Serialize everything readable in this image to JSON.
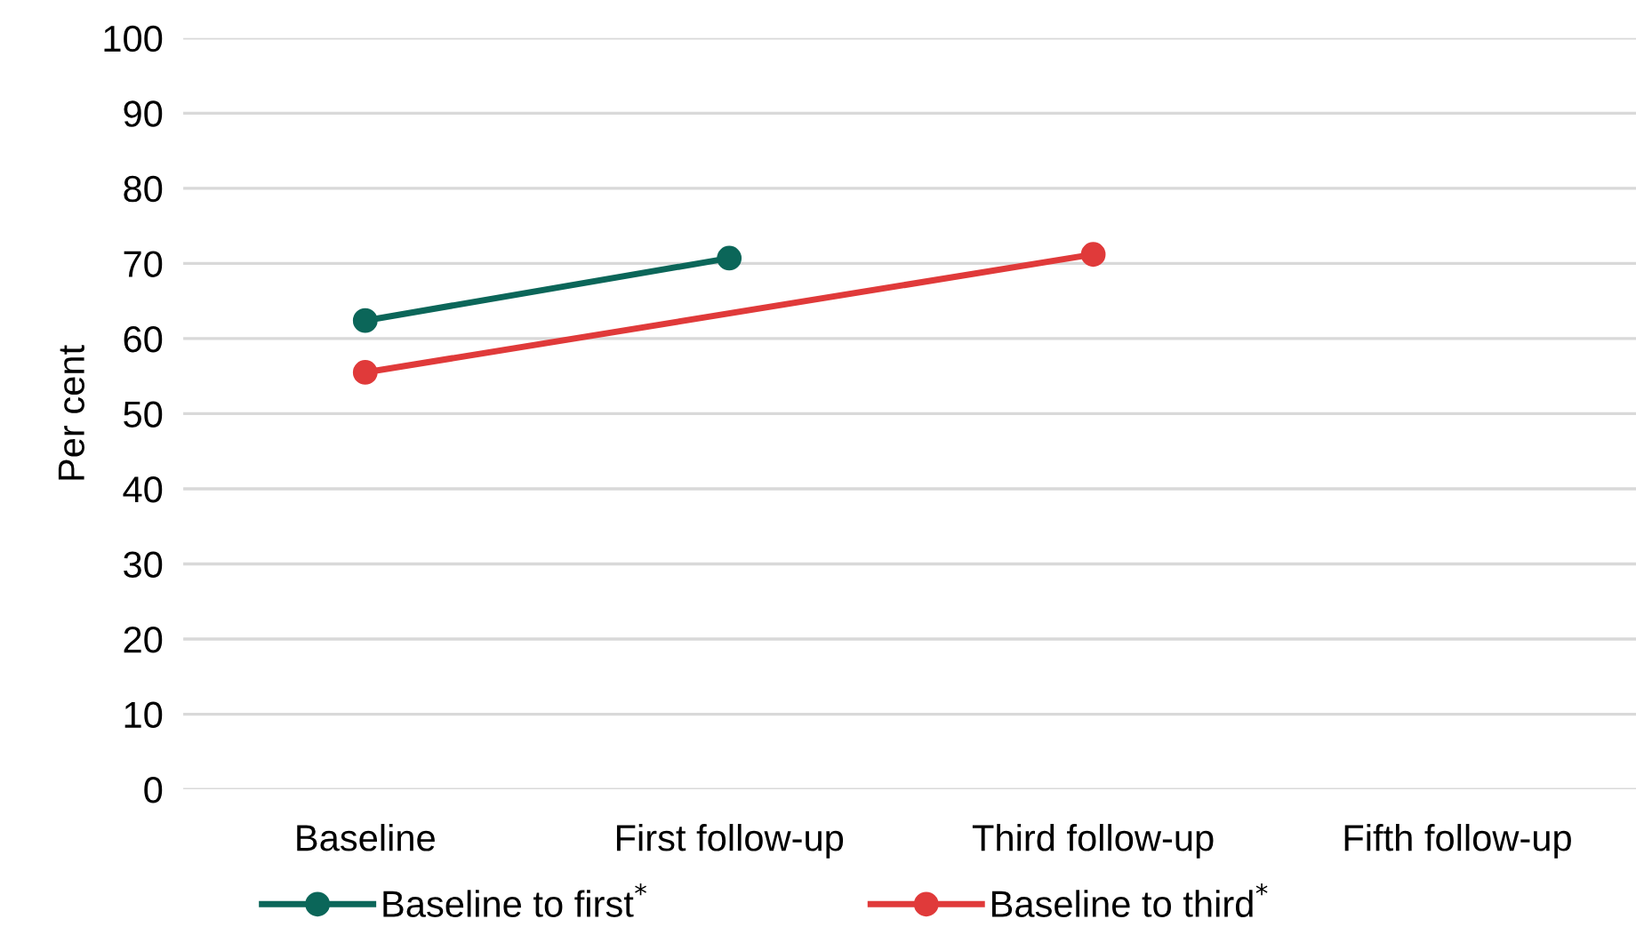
{
  "chart_data": {
    "type": "line",
    "ylabel": "Per cent",
    "categories": [
      "Baseline",
      "First follow-up",
      "Third follow-up",
      "Fifth follow-up"
    ],
    "series": [
      {
        "name": "Baseline to first$^{*}$",
        "color": "#0b6659",
        "values": [
          62.4,
          70.7,
          null,
          null
        ]
      },
      {
        "name": "Baseline to third$^{*}$",
        "color": "#e03a3a",
        "values": [
          55.5,
          null,
          71.2,
          null
        ]
      }
    ],
    "ylim": [
      0,
      100
    ],
    "yticks": [
      0,
      10,
      20,
      30,
      40,
      50,
      60,
      70,
      80,
      90,
      100
    ],
    "grid": "y",
    "legend": "bottom",
    "marker": "circle",
    "line_style": "solid"
  }
}
